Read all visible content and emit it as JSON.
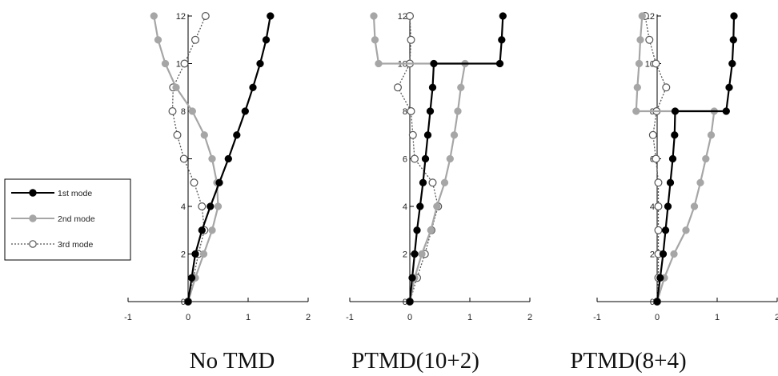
{
  "legend": {
    "entries": [
      {
        "label": "1st mode",
        "color": "#000000",
        "marker": "filled",
        "dash": "solid"
      },
      {
        "label": "2nd mode",
        "color": "#a6a6a6",
        "marker": "filled",
        "dash": "solid"
      },
      {
        "label": "3rd mode",
        "color": "#555555",
        "marker": "hollow",
        "dash": "dotted"
      }
    ]
  },
  "chart_data": [
    {
      "type": "line",
      "title": "No TMD",
      "xlim": [
        -1,
        2
      ],
      "ylim": [
        0,
        12
      ],
      "x_ticks": [
        "-1",
        "0",
        "1",
        "2"
      ],
      "y_ticks": [
        "0",
        "2",
        "4",
        "6",
        "8",
        "10",
        "12"
      ],
      "series": [
        {
          "name": "1st mode",
          "points": [
            [
              0,
              0
            ],
            [
              0.06,
              1
            ],
            [
              0.12,
              2
            ],
            [
              0.23,
              3
            ],
            [
              0.37,
              4
            ],
            [
              0.52,
              5
            ],
            [
              0.67,
              6
            ],
            [
              0.81,
              7
            ],
            [
              0.95,
              8
            ],
            [
              1.08,
              9
            ],
            [
              1.2,
              10
            ],
            [
              1.3,
              11
            ],
            [
              1.37,
              12
            ]
          ]
        },
        {
          "name": "2nd mode",
          "points": [
            [
              0,
              0
            ],
            [
              0.12,
              1
            ],
            [
              0.26,
              2
            ],
            [
              0.4,
              3
            ],
            [
              0.5,
              4
            ],
            [
              0.48,
              5
            ],
            [
              0.4,
              6
            ],
            [
              0.27,
              7
            ],
            [
              0.07,
              8
            ],
            [
              -0.2,
              9
            ],
            [
              -0.38,
              10
            ],
            [
              -0.5,
              11
            ],
            [
              -0.57,
              12
            ]
          ]
        },
        {
          "name": "3rd mode",
          "points": [
            [
              0,
              0
            ],
            [
              0.09,
              1
            ],
            [
              0.17,
              2
            ],
            [
              0.27,
              3
            ],
            [
              0.23,
              4
            ],
            [
              0.1,
              5
            ],
            [
              -0.07,
              6
            ],
            [
              -0.18,
              7
            ],
            [
              -0.26,
              8
            ],
            [
              -0.25,
              9
            ],
            [
              -0.06,
              10
            ],
            [
              0.12,
              11
            ],
            [
              0.29,
              12
            ]
          ]
        }
      ]
    },
    {
      "type": "line",
      "title": "PTMD(10+2)",
      "xlim": [
        -1,
        2
      ],
      "ylim": [
        0,
        12
      ],
      "x_ticks": [
        "-1",
        "0",
        "1",
        "2"
      ],
      "y_ticks": [
        "0",
        "2",
        "4",
        "6",
        "8",
        "10",
        "12"
      ],
      "series": [
        {
          "name": "1st mode",
          "points": [
            [
              0,
              0
            ],
            [
              0.04,
              1
            ],
            [
              0.08,
              2
            ],
            [
              0.12,
              3
            ],
            [
              0.17,
              4
            ],
            [
              0.22,
              5
            ],
            [
              0.26,
              6
            ],
            [
              0.3,
              7
            ],
            [
              0.34,
              8
            ],
            [
              0.38,
              9
            ],
            [
              0.4,
              10
            ],
            [
              1.5,
              10
            ],
            [
              1.53,
              11
            ],
            [
              1.55,
              12
            ]
          ]
        },
        {
          "name": "2nd mode",
          "points": [
            [
              0,
              0
            ],
            [
              0.08,
              1
            ],
            [
              0.2,
              2
            ],
            [
              0.35,
              3
            ],
            [
              0.45,
              4
            ],
            [
              0.58,
              5
            ],
            [
              0.67,
              6
            ],
            [
              0.74,
              7
            ],
            [
              0.8,
              8
            ],
            [
              0.85,
              9
            ],
            [
              0.92,
              10
            ],
            [
              -0.52,
              10
            ],
            [
              -0.58,
              11
            ],
            [
              -0.6,
              12
            ]
          ]
        },
        {
          "name": "3rd mode",
          "points": [
            [
              0,
              0
            ],
            [
              0.12,
              1
            ],
            [
              0.25,
              2
            ],
            [
              0.36,
              3
            ],
            [
              0.47,
              4
            ],
            [
              0.38,
              5
            ],
            [
              0.08,
              6
            ],
            [
              0.05,
              7
            ],
            [
              0.02,
              8
            ],
            [
              -0.2,
              9
            ],
            [
              0,
              10
            ],
            [
              0.02,
              11
            ],
            [
              0,
              12
            ]
          ]
        }
      ]
    },
    {
      "type": "line",
      "title": "PTMD(8+4)",
      "xlim": [
        -1,
        2
      ],
      "ylim": [
        0,
        12
      ],
      "x_ticks": [
        "-1",
        "0",
        "1",
        "2"
      ],
      "y_ticks": [
        "0",
        "2",
        "4",
        "6",
        "8",
        "10",
        "12"
      ],
      "series": [
        {
          "name": "1st mode",
          "points": [
            [
              0,
              0
            ],
            [
              0.05,
              1
            ],
            [
              0.1,
              2
            ],
            [
              0.14,
              3
            ],
            [
              0.18,
              4
            ],
            [
              0.22,
              5
            ],
            [
              0.26,
              6
            ],
            [
              0.29,
              7
            ],
            [
              0.3,
              8
            ],
            [
              1.15,
              8
            ],
            [
              1.2,
              9
            ],
            [
              1.25,
              10
            ],
            [
              1.27,
              11
            ],
            [
              1.28,
              12
            ]
          ]
        },
        {
          "name": "2nd mode",
          "points": [
            [
              0,
              0
            ],
            [
              0.12,
              1
            ],
            [
              0.28,
              2
            ],
            [
              0.48,
              3
            ],
            [
              0.62,
              4
            ],
            [
              0.72,
              5
            ],
            [
              0.81,
              6
            ],
            [
              0.9,
              7
            ],
            [
              0.95,
              8
            ],
            [
              -0.35,
              8
            ],
            [
              -0.33,
              9
            ],
            [
              -0.3,
              10
            ],
            [
              -0.28,
              11
            ],
            [
              -0.25,
              12
            ]
          ]
        },
        {
          "name": "3rd mode",
          "points": [
            [
              0,
              0
            ],
            [
              0.02,
              1
            ],
            [
              0.02,
              2
            ],
            [
              0.02,
              3
            ],
            [
              0.02,
              4
            ],
            [
              0.02,
              5
            ],
            [
              -0.02,
              6
            ],
            [
              -0.07,
              7
            ],
            [
              -0.01,
              8
            ],
            [
              0.15,
              9
            ],
            [
              -0.02,
              10
            ],
            [
              -0.13,
              11
            ],
            [
              -0.2,
              12
            ]
          ]
        }
      ]
    }
  ]
}
